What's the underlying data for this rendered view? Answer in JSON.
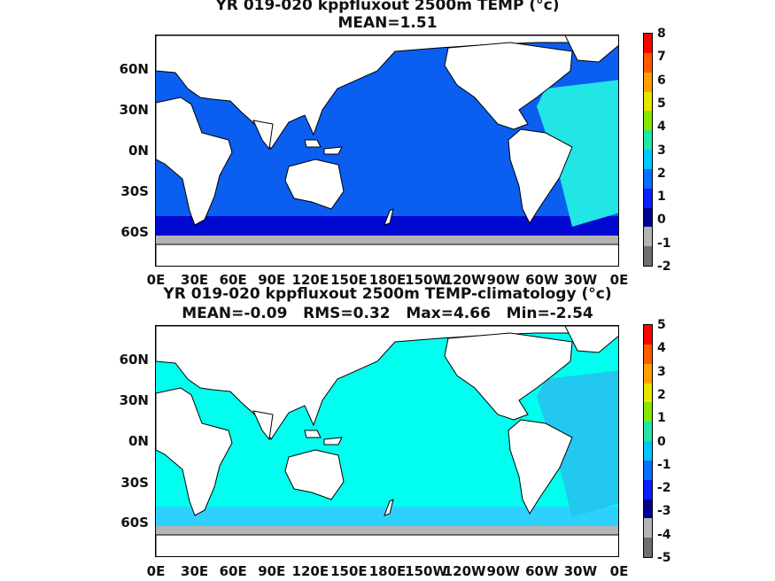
{
  "panels": [
    {
      "title": "YR 019-020 kppfluxout 2500m TEMP (°c)",
      "subtitle": "MEAN=1.51",
      "colorbar_ticks": [
        "8",
        "7",
        "6",
        "5",
        "4",
        "3",
        "2",
        "1",
        "0",
        "-1",
        "-2"
      ],
      "base_color": "#0a5ef0",
      "deep_color": "#0000cc",
      "atlantic_color": "#22e6e6"
    },
    {
      "title": "YR 019-020 kppfluxout 2500m TEMP-climatology (°c)",
      "subtitle": "MEAN=-0.09   RMS=0.32   Max=4.66   Min=-2.54",
      "colorbar_ticks": [
        "5",
        "4",
        "3",
        "2",
        "1",
        "0",
        "-1",
        "-2",
        "-3",
        "-4",
        "-5"
      ],
      "base_color": "#00ffee",
      "deep_color": "#33ccff",
      "atlantic_color": "#22c8ee"
    }
  ],
  "y_axis_labels": [
    "60N",
    "30N",
    "0N",
    "30S",
    "60S"
  ],
  "x_axis_labels": [
    "0E",
    "30E",
    "60E",
    "90E",
    "120E",
    "150E",
    "180E",
    "150W",
    "120W",
    "90W",
    "60W",
    "30W",
    "0E"
  ],
  "colorbar_colors": [
    "#ff0000",
    "#ff5a00",
    "#ffa000",
    "#e6e600",
    "#88e600",
    "#22e6aa",
    "#00c8ff",
    "#0a6eff",
    "#0a1eff",
    "#000090",
    "#b4b4b4",
    "#6e6e6e"
  ],
  "land_color": "#ffffff",
  "coast_color": "#000000"
}
